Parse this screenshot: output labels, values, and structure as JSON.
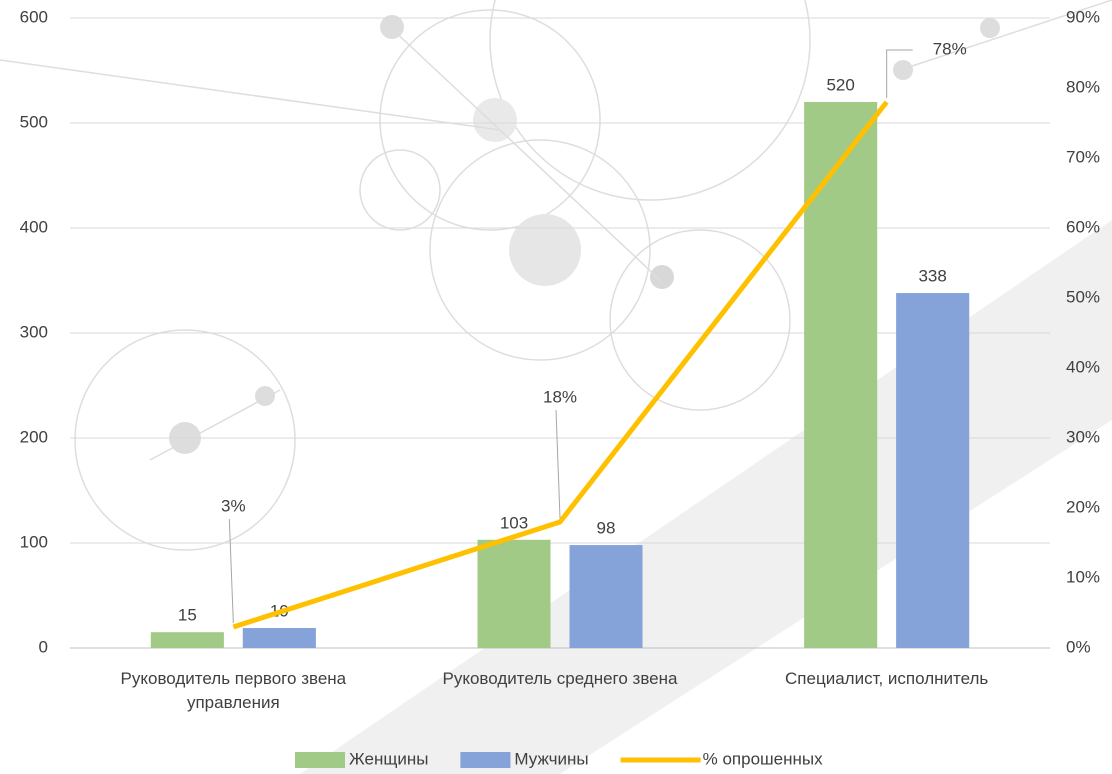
{
  "chart_data": {
    "type": "bar",
    "categories": [
      "Руководитель первого звена управления",
      "Руководитель среднего звена",
      "Специалист, исполнитель"
    ],
    "series": [
      {
        "name": "Женщины",
        "color": "#70ad47",
        "values": [
          15,
          103,
          520
        ]
      },
      {
        "name": "Мужчины",
        "color": "#4472c4",
        "values": [
          19,
          98,
          338
        ]
      },
      {
        "name": "% опрошенных",
        "type": "line",
        "color": "#ffc000",
        "axis": "y2",
        "values": [
          3,
          18,
          78
        ],
        "value_labels": [
          "3%",
          "18%",
          "78%"
        ]
      }
    ],
    "ylim": [
      0,
      600
    ],
    "yticks": [
      0,
      100,
      200,
      300,
      400,
      500,
      600
    ],
    "y2lim": [
      0,
      90
    ],
    "y2ticks": [
      {
        "value": 0,
        "label": "0%"
      },
      {
        "value": 10,
        "label": "10%"
      },
      {
        "value": 20,
        "label": "20%"
      },
      {
        "value": 30,
        "label": "30%"
      },
      {
        "value": 40,
        "label": "40%"
      },
      {
        "value": 50,
        "label": "50%"
      },
      {
        "value": 60,
        "label": "60%"
      },
      {
        "value": 70,
        "label": "70%"
      },
      {
        "value": 80,
        "label": "80%"
      },
      {
        "value": 90,
        "label": "90%"
      }
    ],
    "grid": true,
    "legend": "bottom"
  }
}
